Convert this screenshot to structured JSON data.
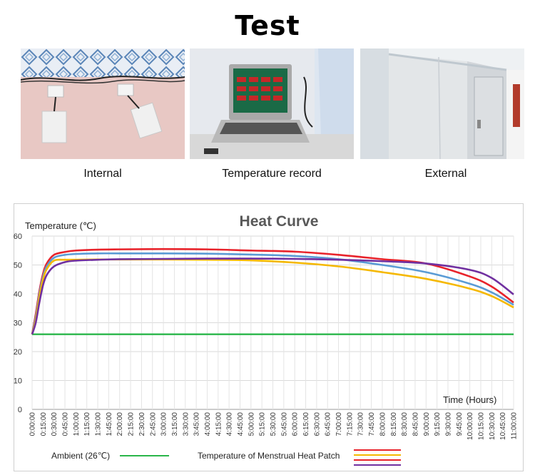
{
  "page": {
    "title": "Test"
  },
  "photos": [
    {
      "caption": "Internal"
    },
    {
      "caption": "Temperature record"
    },
    {
      "caption": "External"
    }
  ],
  "chart_data": {
    "type": "line",
    "title": "Heat Curve",
    "ylabel": "Temperature (℃)",
    "xlabel": "Time  (Hours)",
    "ylim": [
      0,
      60
    ],
    "yticks": [
      0,
      10,
      20,
      30,
      40,
      50,
      60
    ],
    "xlim": [
      0,
      660
    ],
    "x_tick_step": 15,
    "grid": true,
    "legend": {
      "position": "bottom",
      "ambient_label": "Ambient (26℃)",
      "patch_label": "Temperature of Menstrual Heat Patch"
    },
    "x_minutes": [
      0,
      5,
      10,
      15,
      20,
      30,
      45,
      60,
      90,
      120,
      180,
      240,
      300,
      360,
      420,
      480,
      540,
      600,
      630,
      660
    ],
    "series": [
      {
        "color": "#2ab64a",
        "values": [
          26,
          26,
          26,
          26,
          26,
          26,
          26,
          26,
          26,
          26,
          26,
          26,
          26,
          26,
          26,
          26,
          26,
          26,
          26,
          26
        ]
      },
      {
        "color": "#e8232b",
        "values": [
          26,
          33,
          41,
          47,
          50.5,
          53.5,
          54.5,
          55,
          55.3,
          55.4,
          55.5,
          55.4,
          55,
          54.6,
          53.5,
          52,
          50.5,
          46,
          42.5,
          37
        ]
      },
      {
        "color": "#5b9bd5",
        "values": [
          26,
          32,
          40,
          46,
          49.5,
          52.5,
          53.5,
          53.8,
          54,
          54,
          54,
          53.9,
          53.6,
          53.1,
          52,
          50,
          47.5,
          43.5,
          40.5,
          36.2
        ]
      },
      {
        "color": "#f5b800",
        "values": [
          26,
          31,
          39,
          45,
          48.5,
          51.5,
          51.8,
          51.8,
          51.9,
          51.9,
          51.9,
          51.8,
          51.6,
          50.8,
          49.5,
          47.5,
          45.2,
          41.8,
          39.2,
          35.3
        ]
      },
      {
        "color": "#7030a0",
        "values": [
          26,
          30,
          37,
          43,
          46.5,
          49.5,
          51,
          51.5,
          51.8,
          52,
          52.1,
          52.2,
          52.2,
          52.1,
          51.8,
          51.3,
          50.5,
          48.3,
          45.5,
          39.8
        ]
      }
    ]
  }
}
